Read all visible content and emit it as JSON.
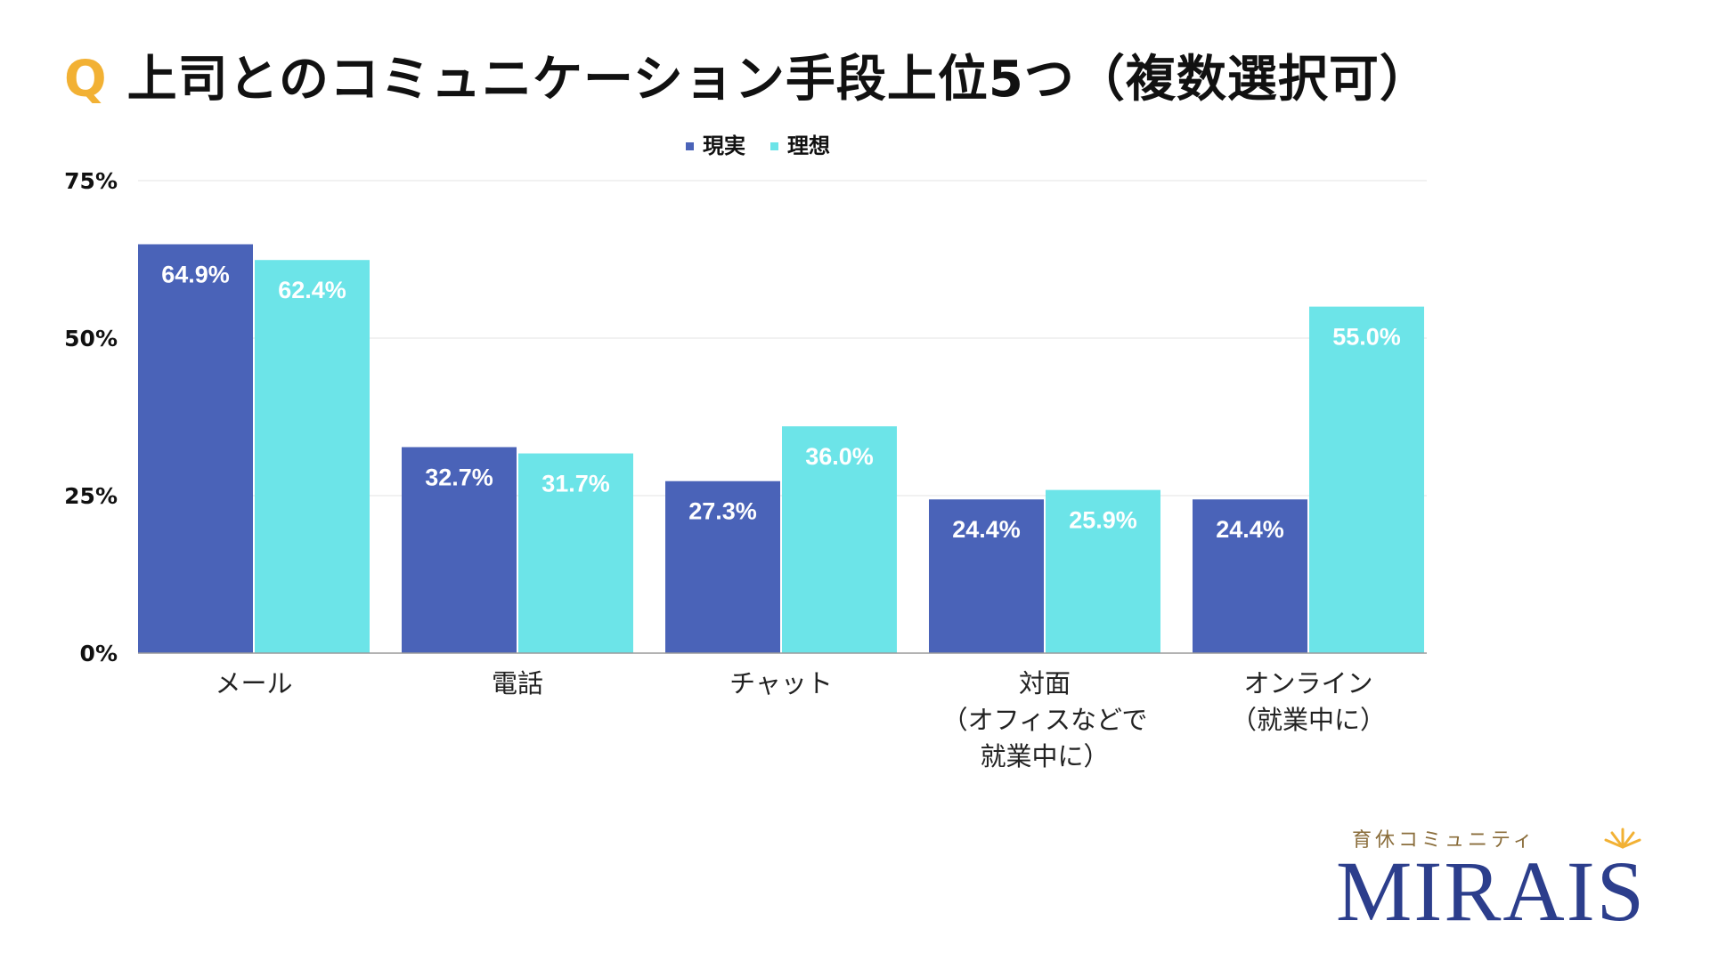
{
  "title_prefix": "Q",
  "title": "上司とのコミュニケーション手段上位5つ（複数選択可）",
  "logo": {
    "subtitle": "育休コミュニティ",
    "wordmark": "MIRAIS"
  },
  "colors": {
    "accent": "#f2b134",
    "series_1": "#4a63b8",
    "series_2": "#6ce4e8",
    "grid": "#e3e3e3",
    "axis": "#9a9a9a",
    "logo": "#2c3e8c"
  },
  "chart_data": {
    "type": "bar",
    "categories": [
      [
        "メール"
      ],
      [
        "電話"
      ],
      [
        "チャット"
      ],
      [
        "対面",
        "（オフィスなどで",
        "就業中に）"
      ],
      [
        "オンライン",
        "（就業中に）"
      ]
    ],
    "series": [
      {
        "name": "現実",
        "values": [
          64.9,
          32.7,
          27.3,
          24.4,
          24.4
        ]
      },
      {
        "name": "理想",
        "values": [
          62.4,
          31.7,
          36.0,
          25.9,
          55.0
        ]
      }
    ],
    "value_labels": [
      [
        "64.9%",
        "32.7%",
        "27.3%",
        "24.4%",
        "24.4%"
      ],
      [
        "62.4%",
        "31.7%",
        "36.0%",
        "25.9%",
        "55.0%"
      ]
    ],
    "y_ticks": [
      0,
      25,
      50,
      75
    ],
    "y_tick_labels": [
      "0%",
      "25%",
      "50%",
      "75%"
    ],
    "ylim": [
      0,
      75
    ],
    "grid": true,
    "legend_position": "top-center"
  }
}
